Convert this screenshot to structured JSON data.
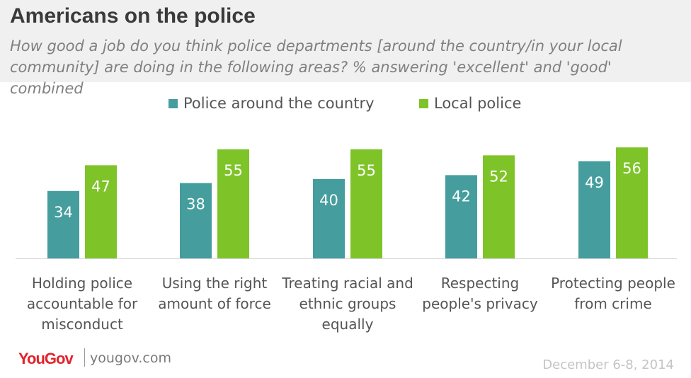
{
  "header": {
    "title": "Americans on the police",
    "subtitle": "How good a job do you think police departments [around the country/in your local community] are doing in the following areas? % answering 'excellent' and 'good' combined"
  },
  "footer": {
    "brand": "YouGov",
    "url": "yougov.com",
    "date": "December 6-8, 2014"
  },
  "colors": {
    "series_country": "#459d9e",
    "series_local": "#7ec429"
  },
  "chart_data": {
    "type": "bar",
    "categories": [
      "Holding police accountable for misconduct",
      "Using the right amount of force",
      "Treating racial and ethnic groups equally",
      "Respecting people's privacy",
      "Protecting people from crime"
    ],
    "series": [
      {
        "name": "Police around the country",
        "values": [
          34,
          38,
          40,
          42,
          49
        ]
      },
      {
        "name": "Local police",
        "values": [
          47,
          55,
          55,
          52,
          56
        ]
      }
    ],
    "legend": "top-center",
    "grid": false,
    "ylim": [
      0,
      60
    ]
  }
}
